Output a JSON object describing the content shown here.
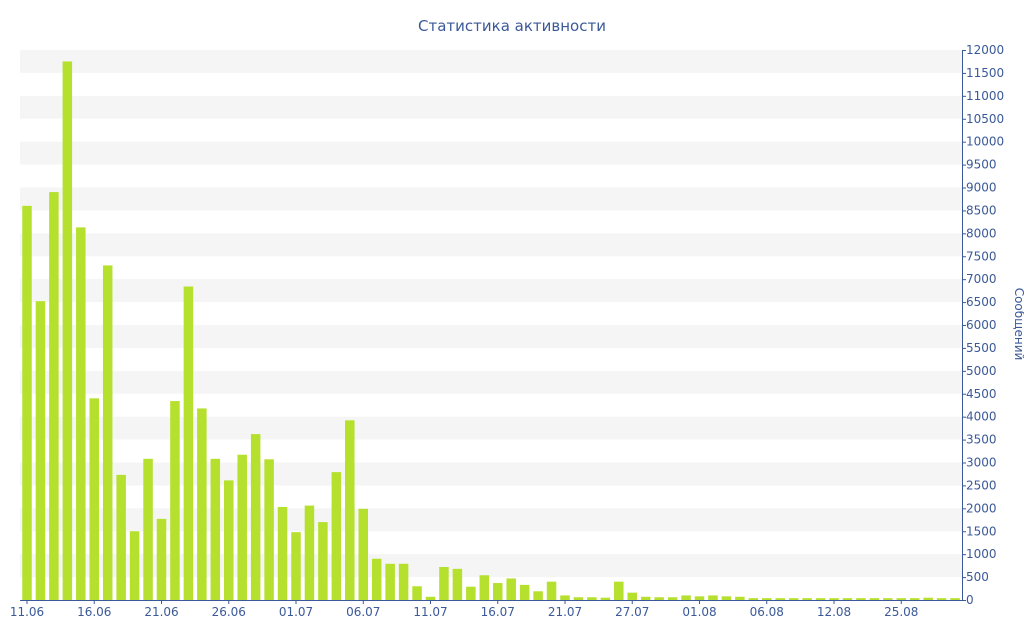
{
  "chart_data": {
    "type": "bar",
    "title": "Статистика активности",
    "xlabel": "",
    "ylabel": "Сообщений",
    "ylim": [
      0,
      12000
    ],
    "yticks": [
      0,
      500,
      1000,
      1500,
      2000,
      2500,
      3000,
      3500,
      4000,
      4500,
      5000,
      5500,
      6000,
      6500,
      7000,
      7500,
      8000,
      8500,
      9000,
      9500,
      10000,
      10500,
      11000,
      11500,
      12000
    ],
    "xtick_labels": [
      {
        "index": 0,
        "label": "11.06"
      },
      {
        "index": 5,
        "label": "16.06"
      },
      {
        "index": 10,
        "label": "21.06"
      },
      {
        "index": 15,
        "label": "26.06"
      },
      {
        "index": 20,
        "label": "01.07"
      },
      {
        "index": 25,
        "label": "06.07"
      },
      {
        "index": 30,
        "label": "11.07"
      },
      {
        "index": 35,
        "label": "16.07"
      },
      {
        "index": 40,
        "label": "21.07"
      },
      {
        "index": 45,
        "label": "27.07"
      },
      {
        "index": 50,
        "label": "01.08"
      },
      {
        "index": 55,
        "label": "06.08"
      },
      {
        "index": 60,
        "label": "12.08"
      },
      {
        "index": 65,
        "label": "25.08"
      }
    ],
    "series": [
      {
        "values": [
          8600,
          6520,
          8900,
          11750,
          8130,
          4400,
          7300,
          2730,
          1500,
          3080,
          1770,
          4340,
          6840,
          4180,
          3080,
          2610,
          3170,
          3620,
          3070,
          2030,
          1480,
          2060,
          1700,
          2790,
          3920,
          1990,
          900,
          790,
          790,
          300,
          70,
          720,
          680,
          290,
          540,
          370,
          470,
          330,
          190,
          400,
          100,
          60,
          60,
          50,
          400,
          160,
          70,
          60,
          60,
          100,
          80,
          100,
          80,
          70,
          40,
          40,
          40,
          40,
          40,
          40,
          40,
          40,
          40,
          40,
          40,
          40,
          40,
          50,
          40,
          40
        ]
      }
    ],
    "colors": {
      "bar": "#b5e02d",
      "band": "#f5f5f5",
      "axis": "#3b5998",
      "text": "#3b5998"
    },
    "grid": true,
    "legend": "none"
  }
}
